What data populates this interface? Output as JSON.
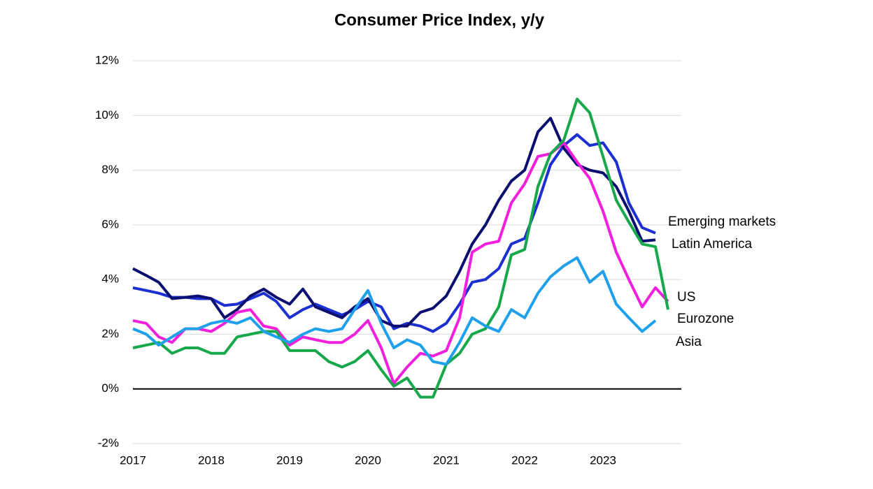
{
  "chart_data": {
    "type": "line",
    "title": "Consumer Price Index, y/y",
    "x": [
      2017.0,
      2017.17,
      2017.33,
      2017.5,
      2017.67,
      2017.83,
      2018.0,
      2018.17,
      2018.33,
      2018.5,
      2018.67,
      2018.83,
      2019.0,
      2019.17,
      2019.33,
      2019.5,
      2019.67,
      2019.83,
      2020.0,
      2020.17,
      2020.33,
      2020.5,
      2020.67,
      2020.83,
      2021.0,
      2021.17,
      2021.33,
      2021.5,
      2021.67,
      2021.83,
      2022.0,
      2022.17,
      2022.33,
      2022.5,
      2022.67,
      2022.83,
      2023.0,
      2023.17,
      2023.33,
      2023.5,
      2023.67,
      2023.83
    ],
    "series": [
      {
        "name": "Emerging markets",
        "color": "#1c2fd0",
        "values": [
          3.7,
          3.6,
          3.5,
          3.35,
          3.35,
          3.3,
          3.3,
          3.05,
          3.1,
          3.3,
          3.5,
          3.2,
          2.6,
          2.9,
          3.1,
          2.9,
          2.7,
          2.9,
          3.2,
          3.0,
          2.2,
          2.4,
          2.3,
          2.1,
          2.4,
          3.1,
          3.9,
          4.0,
          4.4,
          5.3,
          5.5,
          6.8,
          8.2,
          8.9,
          9.3,
          8.9,
          9.0,
          8.3,
          6.8,
          5.9,
          5.7,
          null
        ]
      },
      {
        "name": "Latin America",
        "color": "#0b0f70",
        "values": [
          4.4,
          4.15,
          3.9,
          3.3,
          3.35,
          3.4,
          3.3,
          2.6,
          2.9,
          3.4,
          3.65,
          3.35,
          3.1,
          3.65,
          3.0,
          2.8,
          2.6,
          3.0,
          3.3,
          2.5,
          2.3,
          2.3,
          2.8,
          2.95,
          3.4,
          4.3,
          5.3,
          6.0,
          6.9,
          7.6,
          8.0,
          9.4,
          9.9,
          8.8,
          8.2,
          8.0,
          7.9,
          7.4,
          6.5,
          5.4,
          5.45,
          null
        ]
      },
      {
        "name": "US",
        "color": "#f21fdc",
        "values": [
          2.5,
          2.4,
          1.9,
          1.7,
          2.2,
          2.2,
          2.1,
          2.4,
          2.8,
          2.9,
          2.3,
          2.2,
          1.6,
          1.9,
          1.8,
          1.7,
          1.7,
          2.0,
          2.5,
          1.5,
          0.2,
          0.8,
          1.3,
          1.2,
          1.4,
          2.6,
          5.0,
          5.3,
          5.4,
          6.8,
          7.5,
          8.5,
          8.6,
          9.0,
          8.3,
          7.7,
          6.5,
          5.0,
          4.0,
          3.0,
          3.7,
          3.2
        ]
      },
      {
        "name": "Eurozone",
        "color": "#16a84a",
        "values": [
          1.5,
          1.6,
          1.7,
          1.3,
          1.5,
          1.5,
          1.3,
          1.3,
          1.9,
          2.0,
          2.1,
          2.1,
          1.4,
          1.4,
          1.4,
          1.0,
          0.8,
          1.0,
          1.4,
          0.7,
          0.1,
          0.4,
          -0.3,
          -0.3,
          0.9,
          1.3,
          2.0,
          2.2,
          3.0,
          4.9,
          5.1,
          7.4,
          8.6,
          9.1,
          10.6,
          10.1,
          8.5,
          6.9,
          6.1,
          5.3,
          5.2,
          2.9
        ]
      },
      {
        "name": "Asia",
        "color": "#1ea0ea",
        "values": [
          2.2,
          2.0,
          1.6,
          1.9,
          2.2,
          2.2,
          2.4,
          2.5,
          2.4,
          2.6,
          2.1,
          1.9,
          1.7,
          2.0,
          2.2,
          2.1,
          2.2,
          2.9,
          3.6,
          2.4,
          1.5,
          1.8,
          1.6,
          1.0,
          0.9,
          1.7,
          2.6,
          2.3,
          2.1,
          2.9,
          2.6,
          3.5,
          4.1,
          4.5,
          4.8,
          3.9,
          4.3,
          3.1,
          2.6,
          2.1,
          2.5,
          null
        ]
      }
    ],
    "xlim": [
      2017,
      2024
    ],
    "xticks": [
      2017,
      2018,
      2019,
      2020,
      2021,
      2022,
      2023
    ],
    "ylim": [
      -2,
      12
    ],
    "yticks": [
      {
        "value": -2,
        "label": "-2%"
      },
      {
        "value": 0,
        "label": "0%"
      },
      {
        "value": 2,
        "label": "2%"
      },
      {
        "value": 4,
        "label": "4%"
      },
      {
        "value": 6,
        "label": "6%"
      },
      {
        "value": 8,
        "label": "8%"
      },
      {
        "value": 10,
        "label": "10%"
      },
      {
        "value": 12,
        "label": "12%"
      }
    ],
    "grid": true
  }
}
